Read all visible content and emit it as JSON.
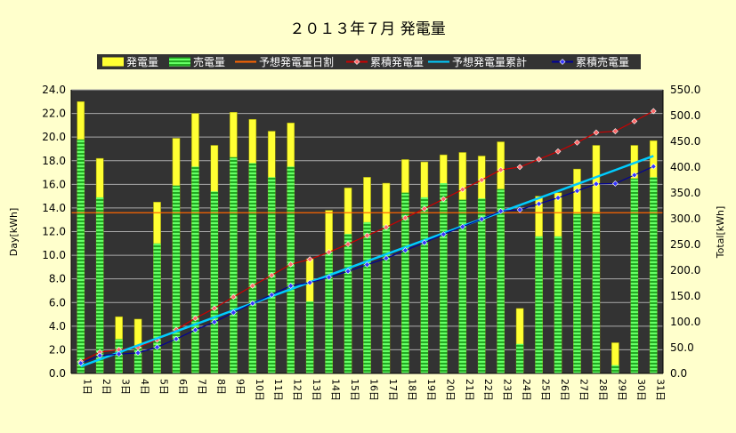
{
  "chart_data": {
    "type": "bar",
    "title": "２０１３年７月 発電量",
    "ylabel_left": "Day[kWh]",
    "ylabel_right": "Total[kWh]",
    "ylim_left": [
      0,
      24
    ],
    "ylim_right": [
      0,
      550
    ],
    "yticks_left": [
      "0.0",
      "2.0",
      "4.0",
      "6.0",
      "8.0",
      "10.0",
      "12.0",
      "14.0",
      "16.0",
      "18.0",
      "20.0",
      "22.0",
      "24.0"
    ],
    "yticks_right": [
      "0.0",
      "50.0",
      "100.0",
      "150.0",
      "200.0",
      "250.0",
      "300.0",
      "350.0",
      "400.0",
      "450.0",
      "500.0",
      "550.0"
    ],
    "grid": true,
    "legend_position": "top",
    "categories": [
      "1日",
      "2日",
      "3日",
      "4日",
      "5日",
      "6日",
      "7日",
      "8日",
      "9日",
      "10日",
      "11日",
      "12日",
      "13日",
      "14日",
      "15日",
      "16日",
      "17日",
      "18日",
      "19日",
      "20日",
      "21日",
      "22日",
      "23日",
      "24日",
      "25日",
      "26日",
      "27日",
      "28日",
      "29日",
      "30日",
      "31日"
    ],
    "series": [
      {
        "name": "発電量",
        "kind": "bar",
        "axis": "left",
        "color": "#FFFF33",
        "values": [
          23.0,
          18.2,
          4.8,
          4.6,
          14.5,
          19.9,
          22.0,
          19.3,
          22.1,
          21.5,
          20.5,
          21.2,
          9.7,
          13.8,
          15.7,
          16.6,
          16.1,
          18.1,
          17.9,
          18.5,
          18.7,
          18.4,
          19.6,
          5.5,
          15.0,
          15.3,
          17.3,
          19.3,
          2.6,
          19.3,
          19.7
        ]
      },
      {
        "name": "売電量",
        "kind": "bar",
        "axis": "left",
        "color": "#33CC33",
        "values": [
          19.8,
          14.9,
          2.9,
          2.3,
          11.0,
          15.9,
          17.5,
          15.4,
          18.3,
          17.8,
          16.6,
          17.5,
          6.1,
          10.3,
          11.8,
          12.8,
          12.5,
          15.3,
          14.9,
          16.1,
          14.7,
          14.8,
          15.6,
          2.5,
          11.6,
          11.6,
          13.5,
          13.5,
          0.7,
          16.5,
          16.6
        ]
      },
      {
        "name": "予想発電量日割",
        "kind": "line",
        "axis": "left",
        "color": "#FF6600",
        "values": [
          13.6,
          13.6,
          13.6,
          13.6,
          13.6,
          13.6,
          13.6,
          13.6,
          13.6,
          13.6,
          13.6,
          13.6,
          13.6,
          13.6,
          13.6,
          13.6,
          13.6,
          13.6,
          13.6,
          13.6,
          13.6,
          13.6,
          13.6,
          13.6,
          13.6,
          13.6,
          13.6,
          13.6,
          13.6,
          13.6,
          13.6
        ]
      },
      {
        "name": "累積発電量",
        "kind": "line",
        "axis": "right",
        "color": "#CC0000",
        "marker": "#FF6666",
        "values": [
          23.0,
          41.2,
          46.0,
          50.6,
          65.1,
          85.0,
          107.0,
          126.3,
          148.4,
          169.9,
          190.4,
          211.6,
          221.3,
          235.1,
          250.8,
          267.4,
          283.5,
          301.6,
          319.5,
          338.0,
          356.7,
          375.1,
          394.7,
          400.2,
          415.2,
          430.5,
          447.8,
          467.1,
          469.7,
          489.0,
          508.7
        ]
      },
      {
        "name": "予想発電量累計",
        "kind": "line",
        "axis": "right",
        "color": "#00CCFF",
        "values": [
          13.6,
          27.2,
          40.8,
          54.4,
          68.0,
          81.6,
          95.2,
          108.8,
          122.4,
          136.0,
          149.6,
          163.2,
          176.8,
          190.4,
          204.0,
          217.6,
          231.2,
          244.8,
          258.4,
          272.0,
          285.6,
          299.2,
          312.8,
          326.4,
          340.0,
          353.6,
          367.2,
          380.8,
          394.4,
          408.0,
          421.6
        ]
      },
      {
        "name": "累積売電量",
        "kind": "line",
        "axis": "right",
        "color": "#000099",
        "marker": "#3333FF",
        "values": [
          19.8,
          34.7,
          37.6,
          39.9,
          50.9,
          66.8,
          84.3,
          99.7,
          118.0,
          135.8,
          152.4,
          169.9,
          176.0,
          186.3,
          198.1,
          210.9,
          223.4,
          238.7,
          253.6,
          269.7,
          284.4,
          299.2,
          314.8,
          317.3,
          328.9,
          340.5,
          354.0,
          367.5,
          368.2,
          384.7,
          401.3
        ]
      }
    ]
  }
}
